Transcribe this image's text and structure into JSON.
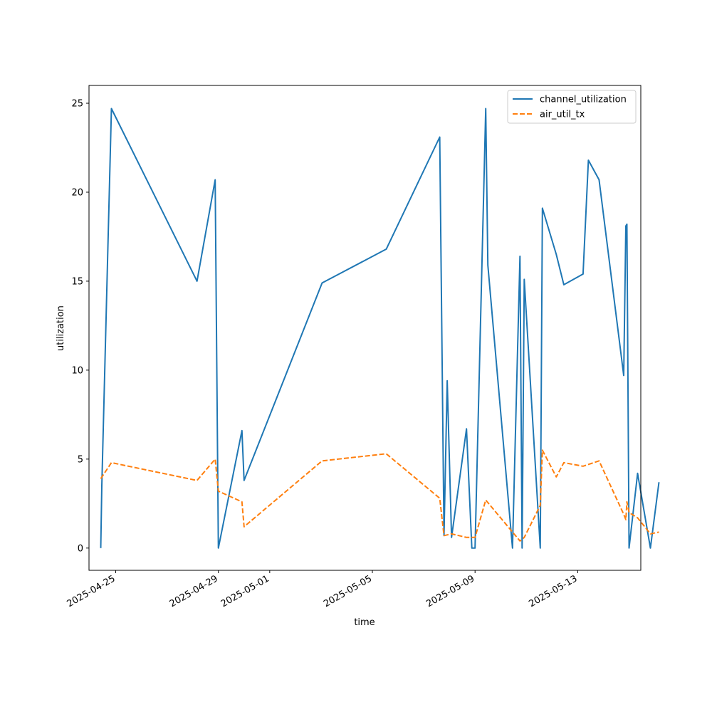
{
  "chart_data": {
    "type": "line",
    "title": "",
    "xlabel": "time",
    "ylabel": "utilization",
    "x_axis_type": "date",
    "xlim": [
      "2025-04-23T23:00",
      "2025-05-15T11:00"
    ],
    "ylim": [
      -1.25,
      26
    ],
    "x_ticks": [
      "2025-04-25",
      "2025-04-29",
      "2025-05-01",
      "2025-05-05",
      "2025-05-09",
      "2025-05-13"
    ],
    "y_ticks": [
      0,
      5,
      10,
      15,
      20,
      25
    ],
    "grid": false,
    "legend_position": "top-right",
    "series": [
      {
        "name": "channel_utilization",
        "color": "#1f77b4",
        "line_style": "solid",
        "points": [
          [
            "2025-04-24T10:00",
            0
          ],
          [
            "2025-04-24T11:00",
            3.5
          ],
          [
            "2025-04-24T20:00",
            24.7
          ],
          [
            "2025-04-28T04:00",
            15.0
          ],
          [
            "2025-04-28T21:00",
            20.7
          ],
          [
            "2025-04-29T00:00",
            0
          ],
          [
            "2025-04-29T22:00",
            6.6
          ],
          [
            "2025-04-30T00:00",
            3.8
          ],
          [
            "2025-05-03T01:00",
            14.9
          ],
          [
            "2025-05-05T13:00",
            16.8
          ],
          [
            "2025-05-07T15:00",
            23.1
          ],
          [
            "2025-05-07T19:00",
            0.7
          ],
          [
            "2025-05-07T22:00",
            9.4
          ],
          [
            "2025-05-08T02:00",
            0.6
          ],
          [
            "2025-05-08T16:00",
            6.7
          ],
          [
            "2025-05-08T21:00",
            0
          ],
          [
            "2025-05-09T00:00",
            0
          ],
          [
            "2025-05-09T10:00",
            24.7
          ],
          [
            "2025-05-09T12:00",
            15.9
          ],
          [
            "2025-05-10T11:00",
            0
          ],
          [
            "2025-05-10T18:00",
            16.4
          ],
          [
            "2025-05-10T20:00",
            0
          ],
          [
            "2025-05-10T22:00",
            15.1
          ],
          [
            "2025-05-11T13:00",
            0
          ],
          [
            "2025-05-11T15:00",
            19.1
          ],
          [
            "2025-05-12T04:00",
            16.5
          ],
          [
            "2025-05-12T11:00",
            14.8
          ],
          [
            "2025-05-13T05:00",
            15.4
          ],
          [
            "2025-05-13T10:00",
            21.8
          ],
          [
            "2025-05-13T20:00",
            20.7
          ],
          [
            "2025-05-14T19:00",
            9.7
          ],
          [
            "2025-05-14T21:00",
            18.1
          ],
          [
            "2025-05-14T22:00",
            18.2
          ],
          [
            "2025-05-15T00:00",
            0
          ],
          [
            "2025-05-15T08:00",
            4.2
          ],
          [
            "2025-05-15T20:00",
            0
          ],
          [
            "2025-05-16T04:00",
            3.7
          ]
        ]
      },
      {
        "name": "air_util_tx",
        "color": "#ff7f0e",
        "line_style": "dashed",
        "points": [
          [
            "2025-04-24T10:00",
            3.9
          ],
          [
            "2025-04-24T20:00",
            4.8
          ],
          [
            "2025-04-28T04:00",
            3.8
          ],
          [
            "2025-04-28T21:00",
            5.0
          ],
          [
            "2025-04-29T00:00",
            3.2
          ],
          [
            "2025-04-29T22:00",
            2.6
          ],
          [
            "2025-04-30T00:00",
            1.2
          ],
          [
            "2025-05-03T01:00",
            4.9
          ],
          [
            "2025-05-05T13:00",
            5.3
          ],
          [
            "2025-05-07T15:00",
            2.8
          ],
          [
            "2025-05-07T19:00",
            0.7
          ],
          [
            "2025-05-08T02:00",
            0.8
          ],
          [
            "2025-05-08T16:00",
            0.6
          ],
          [
            "2025-05-09T00:00",
            0.6
          ],
          [
            "2025-05-09T10:00",
            2.7
          ],
          [
            "2025-05-10T18:00",
            0.4
          ],
          [
            "2025-05-10T22:00",
            0.6
          ],
          [
            "2025-05-11T13:00",
            2.4
          ],
          [
            "2025-05-11T15:00",
            5.5
          ],
          [
            "2025-05-12T04:00",
            4.0
          ],
          [
            "2025-05-12T11:00",
            4.8
          ],
          [
            "2025-05-13T05:00",
            4.6
          ],
          [
            "2025-05-13T20:00",
            4.9
          ],
          [
            "2025-05-14T19:00",
            1.9
          ],
          [
            "2025-05-14T21:00",
            1.6
          ],
          [
            "2025-05-14T22:00",
            2.6
          ],
          [
            "2025-05-15T00:00",
            2.0
          ],
          [
            "2025-05-15T08:00",
            1.7
          ],
          [
            "2025-05-15T20:00",
            0.8
          ],
          [
            "2025-05-16T04:00",
            0.9
          ]
        ]
      }
    ]
  }
}
